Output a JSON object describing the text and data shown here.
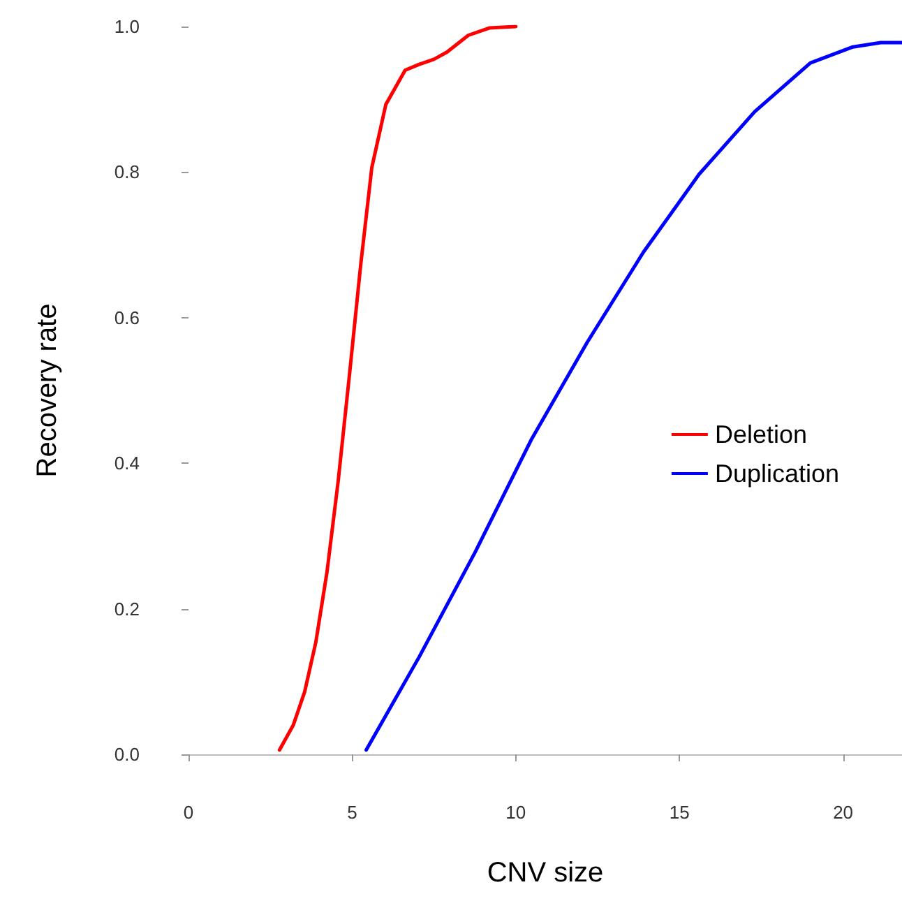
{
  "chart_data": {
    "type": "line",
    "xlabel": "CNV size",
    "ylabel": "Recovery rate",
    "xlim": [
      0,
      21.8
    ],
    "ylim": [
      0,
      1
    ],
    "xticks": [
      0,
      5,
      10,
      15,
      20
    ],
    "yticks": [
      {
        "value": 0,
        "label": "0.0"
      },
      {
        "value": 0.2,
        "label": "0.2"
      },
      {
        "value": 0.4,
        "label": "0.4"
      },
      {
        "value": 0.6,
        "label": "0.6"
      },
      {
        "value": 0.8,
        "label": "0.8"
      },
      {
        "value": 1,
        "label": "1.0"
      }
    ],
    "grid": false,
    "legend": "right",
    "marker": "none",
    "line_style": "solid",
    "series": [
      {
        "name": "Deletion",
        "color": "#ff0000",
        "x": [
          2.78,
          3.2,
          3.55,
          3.89,
          4.23,
          4.57,
          4.91,
          5.26,
          5.6,
          6.03,
          6.62,
          7.05,
          7.5,
          7.9,
          8.55,
          9.19,
          10
        ],
        "values": [
          0.006,
          0.04,
          0.086,
          0.154,
          0.25,
          0.374,
          0.518,
          0.672,
          0.806,
          0.893,
          0.94,
          0.948,
          0.955,
          0.965,
          0.988,
          0.998,
          1.0
        ]
      },
      {
        "name": "Duplication",
        "color": "#0000ff",
        "x": [
          5.43,
          7.05,
          8.76,
          10.47,
          12.18,
          13.9,
          15.6,
          17.3,
          19.0,
          20.3,
          21.15,
          21.8
        ],
        "values": [
          0.006,
          0.134,
          0.278,
          0.432,
          0.566,
          0.69,
          0.797,
          0.883,
          0.95,
          0.972,
          0.978,
          0.978
        ]
      }
    ]
  }
}
